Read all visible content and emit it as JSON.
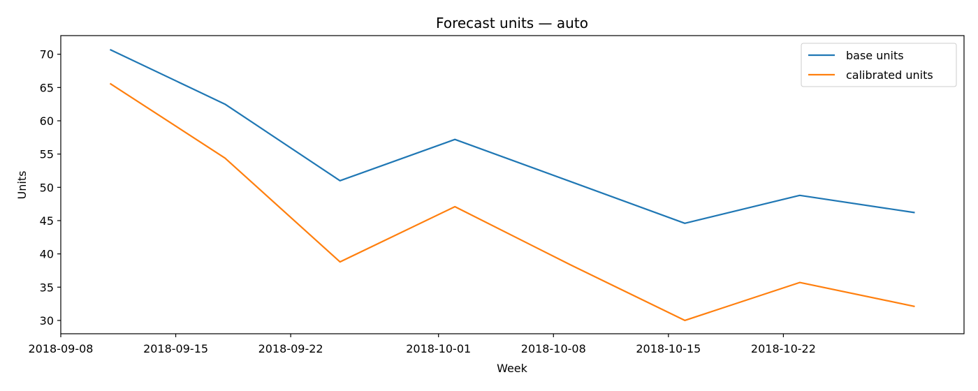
{
  "chart_data": {
    "type": "line",
    "title": "Forecast units — auto",
    "xlabel": "Week",
    "ylabel": "Units",
    "x": [
      "2018-09-11",
      "2018-09-18",
      "2018-09-25",
      "2018-10-02",
      "2018-10-09",
      "2018-10-16",
      "2018-10-23",
      "2018-10-30"
    ],
    "x_ticks": [
      "2018-09-08",
      "2018-09-15",
      "2018-09-22",
      "2018-10-01",
      "2018-10-08",
      "2018-10-15",
      "2018-10-22"
    ],
    "xlim": [
      "2018-09-08",
      "2018-11-02"
    ],
    "y_ticks": [
      30,
      35,
      40,
      45,
      50,
      55,
      60,
      65,
      70
    ],
    "ylim": [
      28.0,
      72.8
    ],
    "grid": false,
    "legend_position": "top-right",
    "series": [
      {
        "name": "base units",
        "color": "#1f77b4",
        "values": [
          70.7,
          62.5,
          51.0,
          57.2,
          50.9,
          44.6,
          48.8,
          46.2
        ]
      },
      {
        "name": "calibrated units",
        "color": "#ff7f0e",
        "values": [
          65.6,
          54.4,
          38.8,
          47.1,
          38.4,
          30.0,
          35.7,
          32.1
        ]
      }
    ]
  }
}
